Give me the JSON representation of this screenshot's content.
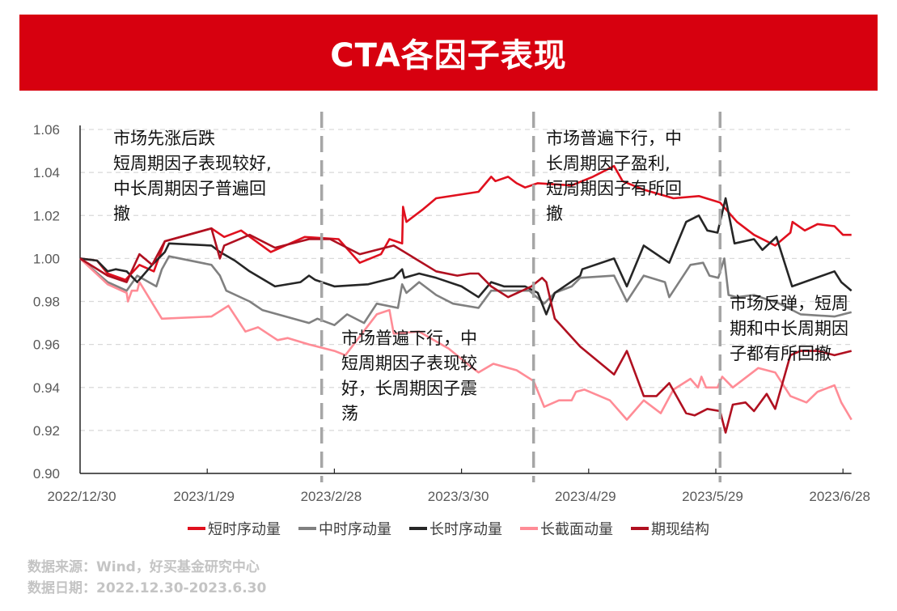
{
  "title": "CTA各因子表现",
  "chart_data": {
    "type": "line",
    "title": "CTA各因子表现",
    "xlabel": "",
    "ylabel": "",
    "x_unit": "days since 2022/12/30",
    "xlim": [
      0,
      182
    ],
    "ylim": [
      0.9,
      1.06
    ],
    "yticks": [
      0.9,
      0.92,
      0.94,
      0.96,
      0.98,
      1.0,
      1.02,
      1.04,
      1.06
    ],
    "ytick_labels": [
      "0.90",
      "0.92",
      "0.94",
      "0.96",
      "0.98",
      "1.00",
      "1.02",
      "1.04",
      "1.06"
    ],
    "xticks": [
      0,
      30,
      60,
      90,
      120,
      150,
      180
    ],
    "xtick_labels": [
      "2022/12/30",
      "2023/1/29",
      "2023/2/28",
      "2023/3/30",
      "2023/4/29",
      "2023/5/29",
      "2023/6/28"
    ],
    "grid": true,
    "legend_position": "bottom",
    "period_dividers": [
      57,
      107,
      151
    ],
    "series": [
      {
        "name": "短时序动量",
        "color": "#e0101e",
        "points": [
          [
            0,
            1.0
          ],
          [
            4,
            0.999
          ],
          [
            6.5,
            0.993
          ],
          [
            10.7,
            0.99
          ],
          [
            14,
            0.997
          ],
          [
            17.4,
            0.994
          ],
          [
            20,
            1.008
          ],
          [
            31,
            1.014
          ],
          [
            34,
            1.01
          ],
          [
            38,
            1.013
          ],
          [
            45,
            1.003
          ],
          [
            53,
            1.01
          ],
          [
            61,
            1.009
          ],
          [
            66,
            0.998
          ],
          [
            71,
            1.002
          ],
          [
            73,
            1.009
          ],
          [
            76,
            1.007
          ],
          [
            76.2,
            1.024
          ],
          [
            77,
            1.017
          ],
          [
            81,
            1.023
          ],
          [
            84,
            1.028
          ],
          [
            94,
            1.031
          ],
          [
            97,
            1.038
          ],
          [
            98,
            1.036
          ],
          [
            101,
            1.038
          ],
          [
            103,
            1.035
          ],
          [
            105,
            1.033
          ],
          [
            108,
            1.035
          ],
          [
            116,
            1.034
          ],
          [
            121,
            1.038
          ],
          [
            126,
            1.043
          ],
          [
            128,
            1.036
          ],
          [
            133,
            1.032
          ],
          [
            140,
            1.028
          ],
          [
            146,
            1.029
          ],
          [
            151,
            1.026
          ],
          [
            155,
            1.017
          ],
          [
            159,
            1.011
          ],
          [
            164,
            1.006
          ],
          [
            167.6,
            1.012
          ],
          [
            168.1,
            1.017
          ],
          [
            171,
            1.013
          ],
          [
            174,
            1.016
          ],
          [
            178,
            1.015
          ],
          [
            180,
            1.011
          ],
          [
            182,
            1.011
          ]
        ]
      },
      {
        "name": "中时序动量",
        "color": "#808080",
        "points": [
          [
            0,
            1.0
          ],
          [
            6.5,
            0.989
          ],
          [
            11,
            0.985
          ],
          [
            13.5,
            0.992
          ],
          [
            18,
            0.987
          ],
          [
            19.3,
            0.995
          ],
          [
            21,
            1.001
          ],
          [
            31,
            0.997
          ],
          [
            33,
            0.992
          ],
          [
            34.5,
            0.985
          ],
          [
            40,
            0.98
          ],
          [
            43,
            0.976
          ],
          [
            54,
            0.97
          ],
          [
            56,
            0.972
          ],
          [
            60,
            0.969
          ],
          [
            63,
            0.974
          ],
          [
            67,
            0.97
          ],
          [
            70,
            0.979
          ],
          [
            75,
            0.977
          ],
          [
            76,
            0.988
          ],
          [
            77,
            0.984
          ],
          [
            80,
            0.989
          ],
          [
            84,
            0.983
          ],
          [
            88,
            0.979
          ],
          [
            94,
            0.977
          ],
          [
            97,
            0.985
          ],
          [
            106,
            0.985
          ],
          [
            109.5,
            0.979
          ],
          [
            112,
            0.984
          ],
          [
            116,
            0.987
          ],
          [
            118,
            0.991
          ],
          [
            126,
            0.992
          ],
          [
            129,
            0.98
          ],
          [
            133,
            0.992
          ],
          [
            138,
            0.989
          ],
          [
            139,
            0.982
          ],
          [
            144,
            0.997
          ],
          [
            147,
            0.998
          ],
          [
            148.5,
            0.992
          ],
          [
            150.6,
            0.991
          ],
          [
            152,
            1.0
          ],
          [
            153,
            0.983
          ],
          [
            155,
            0.982
          ],
          [
            159,
            0.983
          ],
          [
            165,
            0.979
          ],
          [
            170,
            0.974
          ],
          [
            178,
            0.973
          ],
          [
            182,
            0.975
          ]
        ]
      },
      {
        "name": "长时序动量",
        "color": "#262626",
        "points": [
          [
            0,
            1.0
          ],
          [
            4,
            0.999
          ],
          [
            6.5,
            0.994
          ],
          [
            8.4,
            0.995
          ],
          [
            11,
            0.994
          ],
          [
            13.5,
            0.989
          ],
          [
            17,
            0.997
          ],
          [
            20,
            1.003
          ],
          [
            21,
            1.007
          ],
          [
            31,
            1.006
          ],
          [
            33,
            1.003
          ],
          [
            36.5,
            0.999
          ],
          [
            40,
            0.994
          ],
          [
            46,
            0.987
          ],
          [
            52,
            0.989
          ],
          [
            54,
            0.992
          ],
          [
            55.5,
            0.99
          ],
          [
            60,
            0.987
          ],
          [
            68,
            0.988
          ],
          [
            74,
            0.991
          ],
          [
            76,
            0.995
          ],
          [
            76.5,
            0.991
          ],
          [
            80,
            0.993
          ],
          [
            84,
            0.991
          ],
          [
            90,
            0.987
          ],
          [
            94,
            0.982
          ],
          [
            97,
            0.989
          ],
          [
            100,
            0.987
          ],
          [
            105,
            0.987
          ],
          [
            108,
            0.984
          ],
          [
            110,
            0.974
          ],
          [
            112,
            0.984
          ],
          [
            118,
            0.992
          ],
          [
            118.5,
            0.995
          ],
          [
            126,
            1.0
          ],
          [
            129,
            0.987
          ],
          [
            133,
            1.006
          ],
          [
            136,
            1.002
          ],
          [
            139,
            0.998
          ],
          [
            143,
            1.017
          ],
          [
            146,
            1.02
          ],
          [
            148,
            1.013
          ],
          [
            150.4,
            1.012
          ],
          [
            152.3,
            1.028
          ],
          [
            154.4,
            1.007
          ],
          [
            159,
            1.009
          ],
          [
            161,
            1.004
          ],
          [
            164.3,
            1.01
          ],
          [
            168,
            0.987
          ],
          [
            178,
            0.994
          ],
          [
            179.6,
            0.989
          ],
          [
            182,
            0.985
          ]
        ]
      },
      {
        "name": "长截面动量",
        "color": "#ff8c96",
        "points": [
          [
            0,
            1.0
          ],
          [
            6.5,
            0.988
          ],
          [
            11,
            0.984
          ],
          [
            11.3,
            0.98
          ],
          [
            12.2,
            0.985
          ],
          [
            13.5,
            0.985
          ],
          [
            14,
            0.989
          ],
          [
            19.3,
            0.972
          ],
          [
            31,
            0.973
          ],
          [
            32.6,
            0.975
          ],
          [
            35,
            0.978
          ],
          [
            39,
            0.966
          ],
          [
            42,
            0.968
          ],
          [
            46.6,
            0.962
          ],
          [
            49,
            0.963
          ],
          [
            54,
            0.96
          ],
          [
            60,
            0.957
          ],
          [
            62.6,
            0.955
          ],
          [
            70,
            0.974
          ],
          [
            73,
            0.976
          ],
          [
            74,
            0.965
          ],
          [
            80,
            0.966
          ],
          [
            87,
            0.958
          ],
          [
            94,
            0.947
          ],
          [
            92,
            0.95
          ],
          [
            97.5,
            0.951
          ],
          [
            103,
            0.948
          ],
          [
            107,
            0.943
          ],
          [
            109.5,
            0.931
          ],
          [
            113,
            0.934
          ],
          [
            116,
            0.934
          ],
          [
            117,
            0.938
          ],
          [
            119,
            0.939
          ],
          [
            125,
            0.934
          ],
          [
            129,
            0.925
          ],
          [
            133,
            0.934
          ],
          [
            137,
            0.928
          ],
          [
            140,
            0.939
          ],
          [
            144,
            0.944
          ],
          [
            145.8,
            0.94
          ],
          [
            146.6,
            0.945
          ],
          [
            147.7,
            0.94
          ],
          [
            150.4,
            0.94
          ],
          [
            151.5,
            0.945
          ],
          [
            154,
            0.94
          ],
          [
            160,
            0.949
          ],
          [
            164,
            0.947
          ],
          [
            167.6,
            0.936
          ],
          [
            171.4,
            0.933
          ],
          [
            174,
            0.938
          ],
          [
            178,
            0.941
          ],
          [
            179.6,
            0.933
          ],
          [
            182,
            0.925
          ]
        ]
      },
      {
        "name": "期现结构",
        "color": "#b01020",
        "points": [
          [
            0,
            1.0
          ],
          [
            6.5,
            0.992
          ],
          [
            11,
            0.989
          ],
          [
            14,
            1.002
          ],
          [
            17,
            0.997
          ],
          [
            20,
            1.008
          ],
          [
            31,
            1.014
          ],
          [
            33,
            1.0
          ],
          [
            34,
            1.006
          ],
          [
            40,
            1.011
          ],
          [
            46,
            1.005
          ],
          [
            54,
            1.009
          ],
          [
            59,
            1.009
          ],
          [
            66,
            1.002
          ],
          [
            74,
            1.006
          ],
          [
            84,
            0.994
          ],
          [
            89,
            0.992
          ],
          [
            92,
            0.993
          ],
          [
            94,
            0.993
          ],
          [
            97,
            0.987
          ],
          [
            101,
            0.982
          ],
          [
            106.5,
            0.987
          ],
          [
            109,
            0.991
          ],
          [
            110,
            0.989
          ],
          [
            112,
            0.972
          ],
          [
            118,
            0.959
          ],
          [
            126,
            0.946
          ],
          [
            129,
            0.957
          ],
          [
            133,
            0.936
          ],
          [
            136,
            0.936
          ],
          [
            139,
            0.942
          ],
          [
            143,
            0.928
          ],
          [
            145,
            0.927
          ],
          [
            148,
            0.93
          ],
          [
            151,
            0.929
          ],
          [
            152.3,
            0.919
          ],
          [
            154,
            0.932
          ],
          [
            157,
            0.933
          ],
          [
            159,
            0.929
          ],
          [
            162,
            0.937
          ],
          [
            164,
            0.93
          ],
          [
            167.6,
            0.955
          ],
          [
            170,
            0.957
          ],
          [
            174,
            0.957
          ],
          [
            178,
            0.955
          ],
          [
            182,
            0.957
          ]
        ]
      }
    ]
  },
  "annotations": [
    "市场先涨后跌\n短周期因子表现较好,\n中长周期因子普遍回\n撤",
    "市场普遍下行，中\n短周期因子表现较\n好，长周期因子震\n荡",
    "市场普遍下行，中\n长周期因子盈利,\n短周期因子有所回\n撤",
    "市场反弹，短周\n期和中长周期因\n子都有所回撤"
  ],
  "footer": {
    "source": "数据来源：Wind，好买基金研究中心",
    "date_range": "数据日期：2022.12.30-2023.6.30"
  }
}
